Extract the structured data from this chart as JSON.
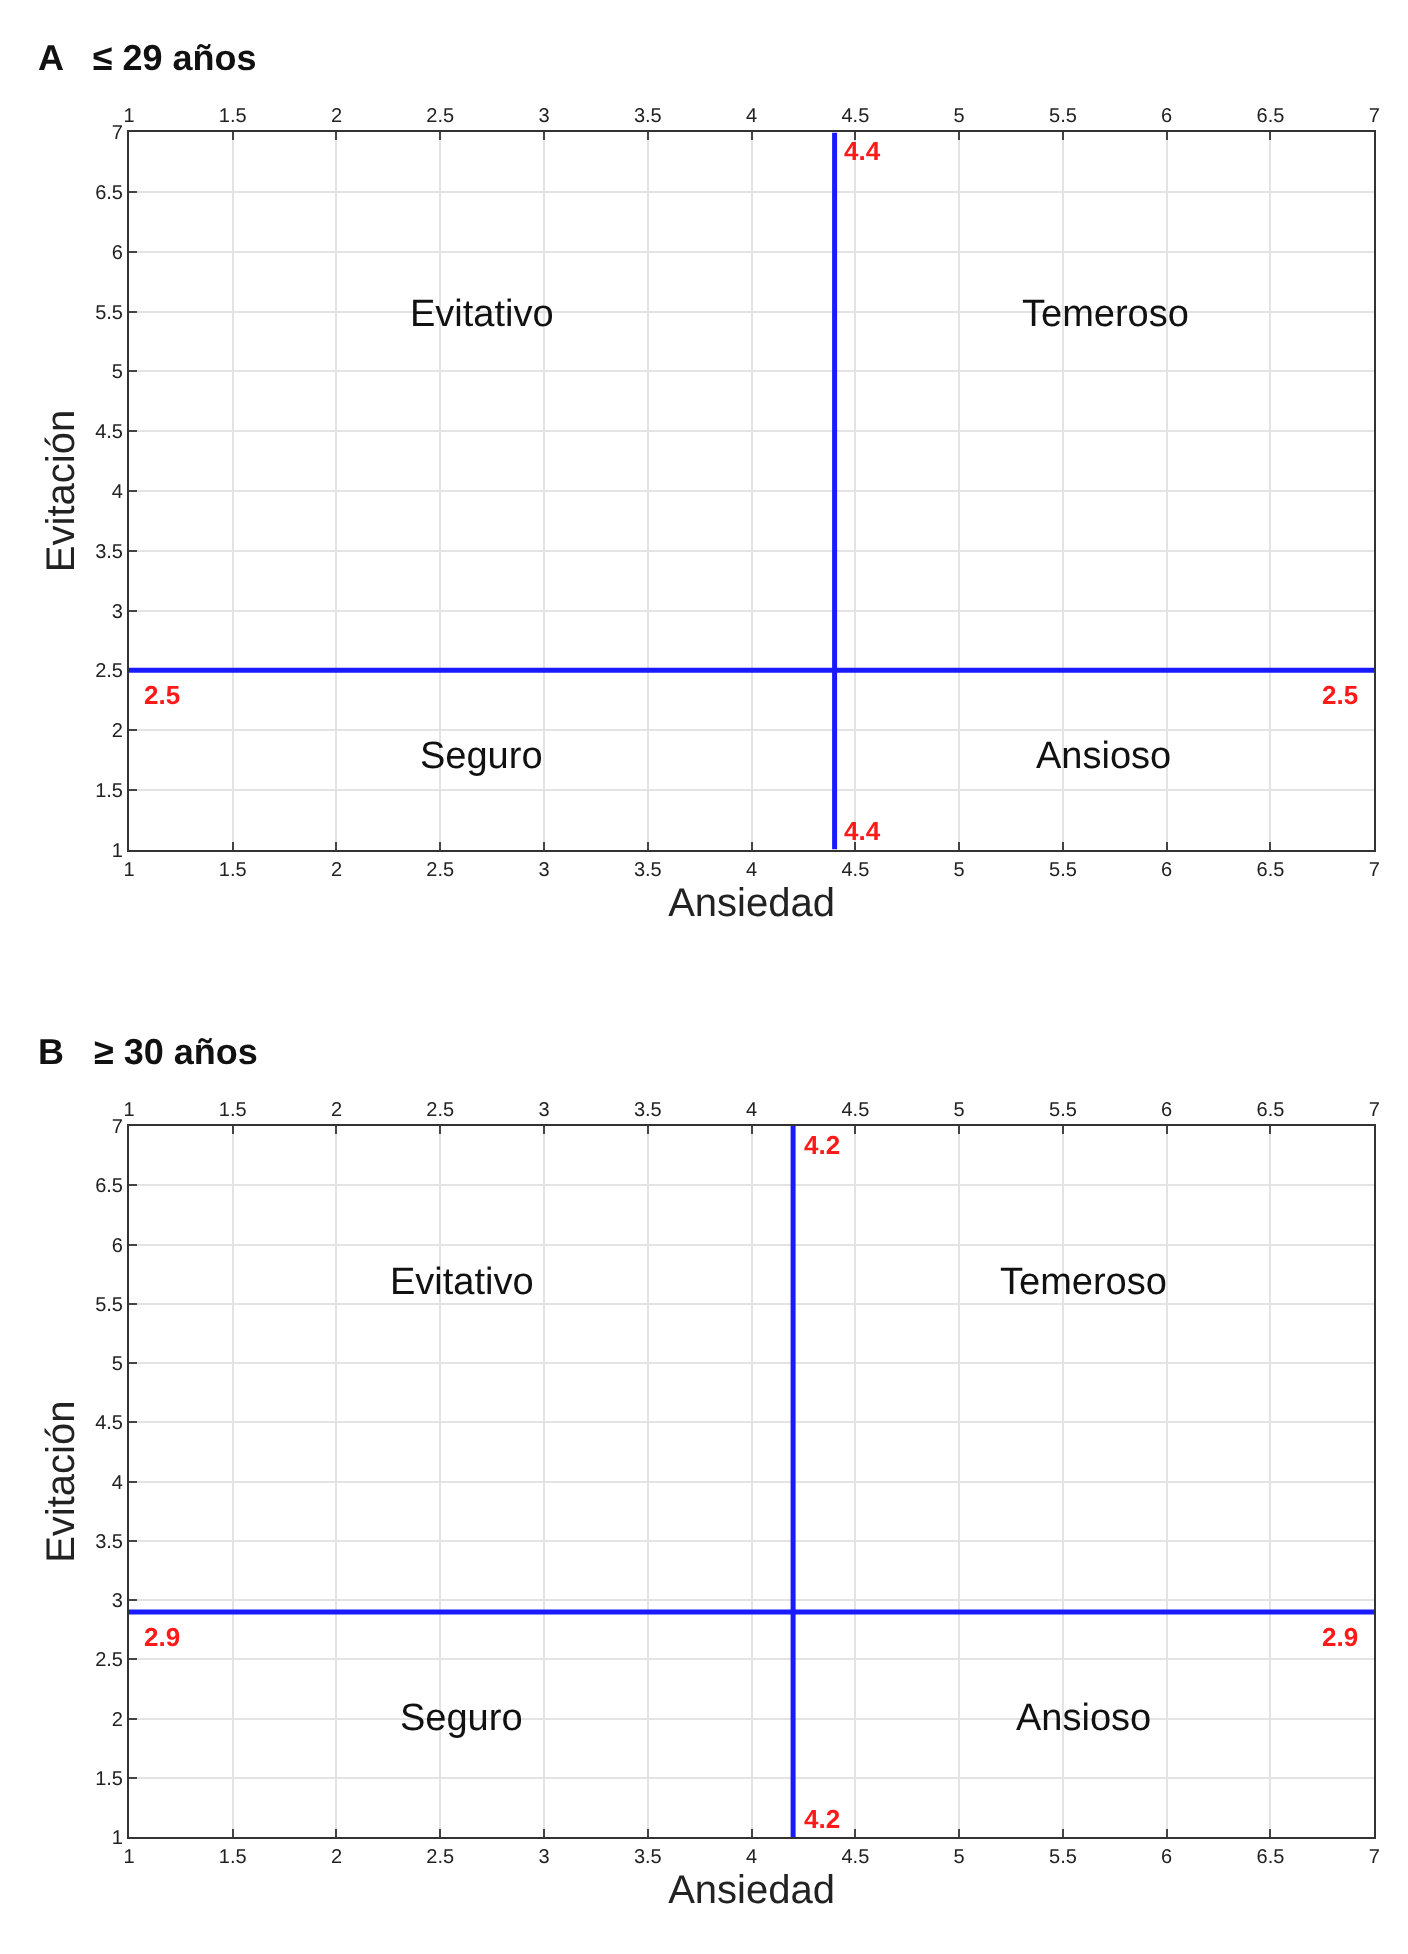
{
  "chart_data": [
    {
      "type": "scatter",
      "title": "A   ≤ 29 años",
      "xlabel": "Ansiedad",
      "ylabel": "Evitación",
      "xlim": [
        1,
        7
      ],
      "xticks": [
        1,
        1.5,
        2,
        2.5,
        3,
        3.5,
        4,
        4.5,
        5,
        5.5,
        6,
        6.5,
        7
      ],
      "x2lim": [
        1,
        7
      ],
      "x2ticks": [
        1,
        1.5,
        2,
        2.5,
        3,
        3.5,
        4,
        4.5,
        5,
        5.5,
        6,
        6.5,
        7
      ],
      "ylim": [
        1,
        7
      ],
      "yticks": [
        1,
        1.5,
        2,
        2.5,
        3,
        3.5,
        4,
        4.5,
        5,
        5.5,
        6,
        6.5,
        7
      ],
      "grid": true,
      "ref_lines": [
        {
          "axis": "x",
          "value": 4.4,
          "label": "4.4",
          "color": "#1a1aff"
        },
        {
          "axis": "y",
          "value": 2.5,
          "label": "2.5",
          "color": "#1a1aff"
        }
      ],
      "annotations": [
        "Evitativo",
        "Temeroso",
        "Seguro",
        "Ansioso"
      ]
    },
    {
      "type": "scatter",
      "title": "B   ≥ 30 años",
      "xlabel": "Ansiedad",
      "ylabel": "Evitación",
      "xlim": [
        1,
        7
      ],
      "xticks": [
        1,
        1.5,
        2,
        2.5,
        3,
        3.5,
        4,
        4.5,
        5,
        5.5,
        6,
        6.5,
        7
      ],
      "x2lim": [
        1,
        7
      ],
      "x2ticks": [
        1,
        1.5,
        2,
        2.5,
        3,
        3.5,
        4,
        4.5,
        5,
        5.5,
        6,
        6.5,
        7
      ],
      "ylim": [
        1,
        7
      ],
      "yticks": [
        1,
        1.5,
        2,
        2.5,
        3,
        3.5,
        4,
        4.5,
        5,
        5.5,
        6,
        6.5,
        7
      ],
      "grid": true,
      "ref_lines": [
        {
          "axis": "x",
          "value": 4.2,
          "label": "4.2",
          "color": "#1a1aff"
        },
        {
          "axis": "y",
          "value": 2.9,
          "label": "2.9",
          "color": "#1a1aff"
        }
      ],
      "annotations": [
        "Evitativo",
        "Temeroso",
        "Seguro",
        "Ansioso"
      ]
    }
  ]
}
